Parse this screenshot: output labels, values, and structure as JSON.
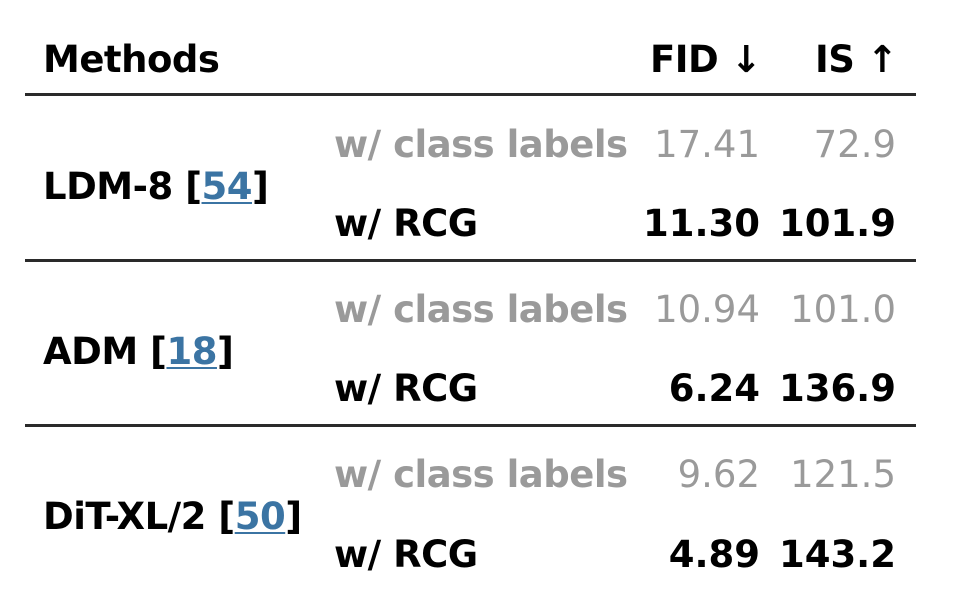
{
  "header": {
    "methods": "Methods",
    "fid": "FID ↓",
    "is": "IS ↑"
  },
  "rows": [
    {
      "method": "LDM-8",
      "ref": "54",
      "baseline_label": "w/ class labels",
      "baseline_fid": "17.41",
      "baseline_is": "72.9",
      "rcg_label": "w/ RCG",
      "rcg_fid": "11.30",
      "rcg_is": "101.9"
    },
    {
      "method": "ADM",
      "ref": "18",
      "baseline_label": "w/ class labels",
      "baseline_fid": "10.94",
      "baseline_is": "101.0",
      "rcg_label": "w/ RCG",
      "rcg_fid": "6.24",
      "rcg_is": "136.9"
    },
    {
      "method": "DiT-XL/2",
      "ref": "50",
      "baseline_label": "w/ class labels",
      "baseline_fid": "9.62",
      "baseline_is": "121.5",
      "rcg_label": "w/ RCG",
      "rcg_fid": "4.89",
      "rcg_is": "143.2"
    }
  ],
  "colors": {
    "muted_text": "#9a9a9a",
    "citation_link": "#3b74a3",
    "rule": "#2a2a2a"
  }
}
